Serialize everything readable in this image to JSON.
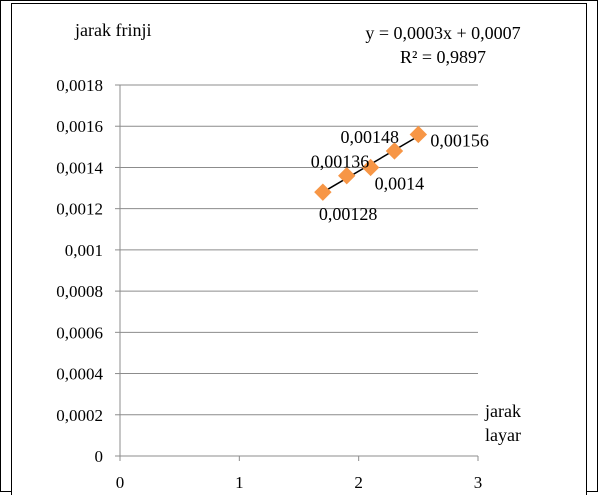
{
  "chart_data": {
    "type": "scatter",
    "ylabel": "jarak frinji",
    "xlabel": "jarak layar",
    "xlim": [
      0,
      3
    ],
    "ylim": [
      0,
      0.0018
    ],
    "x_ticks": [
      "0",
      "1",
      "2",
      "3"
    ],
    "y_ticks": [
      "0",
      "0,0002",
      "0,0004",
      "0,0006",
      "0,0008",
      "0,001",
      "0,0012",
      "0,0014",
      "0,0016",
      "0,0018"
    ],
    "grid": "horizontal",
    "marker_color": "#F79646",
    "series": [
      {
        "points": [
          {
            "x": 1.7,
            "y": 0.00128,
            "label": "0,00128"
          },
          {
            "x": 1.9,
            "y": 0.00136,
            "label": "0,00136"
          },
          {
            "x": 2.1,
            "y": 0.0014,
            "label": "0,0014"
          },
          {
            "x": 2.3,
            "y": 0.00148,
            "label": "0,00148"
          },
          {
            "x": 2.5,
            "y": 0.00156,
            "label": "0,00156"
          }
        ]
      }
    ],
    "trendline": {
      "type": "linear",
      "color": "#000000",
      "equation": "y = 0,0003x + 0,0007",
      "r_squared": "R² = 0,9897"
    }
  }
}
